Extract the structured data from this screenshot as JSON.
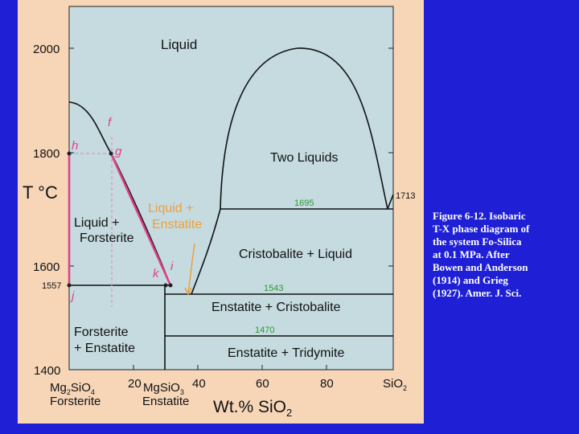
{
  "axes": {
    "y_label": "T °C",
    "x_label": "Wt.% SiO",
    "x_label_sub": "2",
    "y_ticks": [
      "2000",
      "1800",
      "1600",
      "1400"
    ],
    "x_ticks": [
      "20",
      "40",
      "60",
      "80"
    ],
    "end_left_line1": "Mg",
    "end_left_sub1": "2",
    "end_left_line1b": "SiO",
    "end_left_sub2": "4",
    "end_left_line2": "Forsterite",
    "enstatite_formula": "MgSiO",
    "enstatite_sub": "3",
    "enstatite_name": "Enstatite",
    "end_right": "SiO",
    "end_right_sub": "2"
  },
  "fields": {
    "liquid": "Liquid",
    "two_liquids": "Two Liquids",
    "liquid_forsterite_1": "Liquid +",
    "liquid_forsterite_2": "Forsterite",
    "liquid_enstatite_1": "Liquid +",
    "liquid_enstatite_2": "Enstatite",
    "cristobalite_liquid": "Cristobalite + Liquid",
    "enstatite_cristobalite": "Enstatite + Cristobalite",
    "forsterite_enstatite_1": "Forsterite",
    "forsterite_enstatite_2": "+ Enstatite",
    "enstatite_tridymite": "Enstatite + Tridymite"
  },
  "temperatures": {
    "t1713": "1713",
    "t1695": "1695",
    "t1557": "1557",
    "t1543": "1543",
    "t1470": "1470"
  },
  "points": {
    "f": "f",
    "g": "g",
    "h": "h",
    "i": "i",
    "j": "j",
    "k": "k"
  },
  "caption": [
    "Figure 6-12. Isobaric",
    "T-X phase diagram of",
    "the system Fo-Silica",
    "at 0.1 MPa. After",
    "Bowen and Anderson",
    "(1914) and Grieg",
    "(1927). Amer. J. Sci."
  ],
  "colors": {
    "background": "#1f1fd6",
    "panel": "#f7d6b8",
    "plot": "#c5dbe0",
    "path": "#e0408a",
    "orange": "#f0a03a",
    "green": "#2d9a2d"
  }
}
